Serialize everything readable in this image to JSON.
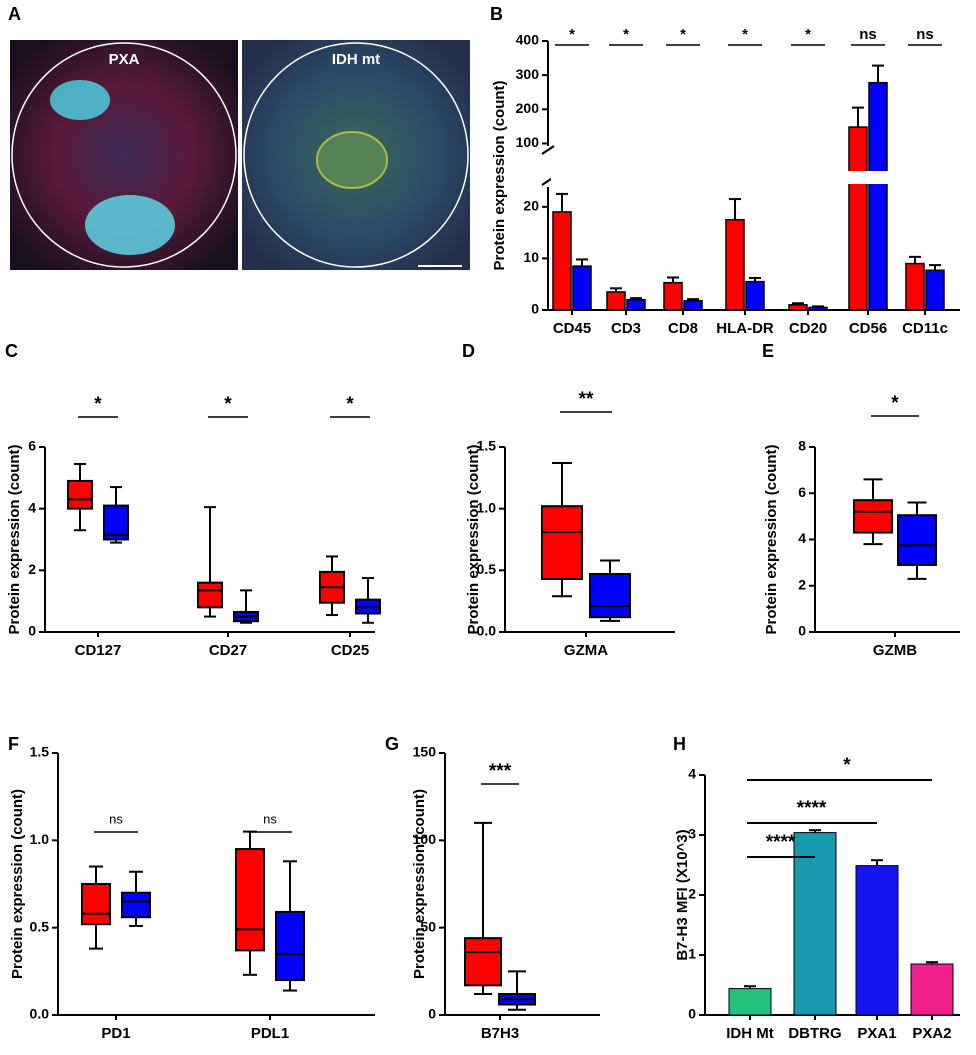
{
  "image_panel": {
    "label": "A",
    "captions": [
      "PXA",
      "IDH mt"
    ]
  },
  "chart_data": [
    {
      "type": "bar",
      "label": "B",
      "ylabel": "Protein expression (count)",
      "categories": [
        "CD45",
        "CD3",
        "CD8",
        "HLA-DR",
        "CD20",
        "CD56",
        "CD11c"
      ],
      "series": [
        {
          "color": "#ff0000",
          "values": [
            19,
            3.5,
            5.3,
            17.5,
            1,
            148,
            9
          ],
          "errors": [
            3.5,
            0.7,
            1,
            4,
            0.3,
            57,
            1.3
          ]
        },
        {
          "color": "#0000ff",
          "values": [
            8.5,
            2,
            1.8,
            5.5,
            0.5,
            278,
            7.7
          ],
          "errors": [
            1.3,
            0.3,
            0.3,
            0.7,
            0.2,
            50,
            1
          ]
        }
      ],
      "annotations": [
        "*",
        "*",
        "*",
        "*",
        "*",
        "ns",
        "ns"
      ],
      "y_segments": [
        {
          "ylim": [
            0,
            25
          ],
          "yticks": [
            0,
            10,
            20
          ]
        },
        {
          "ylim": [
            75,
            400
          ],
          "yticks": [
            100,
            200,
            300,
            400
          ]
        }
      ]
    },
    {
      "type": "box",
      "label": "C",
      "ylabel": "Protein expression (count)",
      "categories": [
        "CD127",
        "CD27",
        "CD25"
      ],
      "series": [
        {
          "color": "#ff0000",
          "values": [
            [
              3.3,
              4.0,
              4.3,
              4.9,
              5.45
            ],
            [
              0.5,
              0.8,
              1.35,
              1.6,
              4.05
            ],
            [
              0.55,
              0.95,
              1.45,
              1.95,
              2.45
            ]
          ]
        },
        {
          "color": "#0000ff",
          "values": [
            [
              2.9,
              3.0,
              3.15,
              4.1,
              4.7
            ],
            [
              0.3,
              0.35,
              0.5,
              0.65,
              1.35
            ],
            [
              0.3,
              0.6,
              0.8,
              1.05,
              1.75
            ]
          ]
        }
      ],
      "annotations": [
        "*",
        "*",
        "*"
      ],
      "ylim": [
        0,
        6
      ],
      "yticks": [
        0,
        2,
        4,
        6
      ]
    },
    {
      "type": "box",
      "label": "D",
      "ylabel": "Protein expression (count)",
      "categories": [
        "GZMA"
      ],
      "series": [
        {
          "color": "#ff0000",
          "values": [
            [
              0.29,
              0.43,
              0.81,
              1.02,
              1.37
            ]
          ]
        },
        {
          "color": "#0000ff",
          "values": [
            [
              0.09,
              0.12,
              0.21,
              0.47,
              0.58
            ]
          ]
        }
      ],
      "annotations": [
        "**"
      ],
      "ylim": [
        0,
        1.5
      ],
      "yticks": [
        {
          "value": 0,
          "label": "0.0"
        },
        0.5,
        {
          "value": 1,
          "label": "1.0"
        },
        1.5
      ]
    },
    {
      "type": "box",
      "label": "E",
      "ylabel": "Protein expression (count)",
      "categories": [
        "GZMB"
      ],
      "series": [
        {
          "color": "#ff0000",
          "values": [
            [
              3.8,
              4.3,
              5.2,
              5.7,
              6.6
            ]
          ]
        },
        {
          "color": "#0000ff",
          "values": [
            [
              2.3,
              2.9,
              3.75,
              5.05,
              5.6
            ]
          ]
        }
      ],
      "annotations": [
        "*"
      ],
      "ylim": [
        0,
        8
      ],
      "yticks": [
        0,
        2,
        4,
        6,
        8
      ]
    },
    {
      "type": "box",
      "label": "F",
      "ylabel": "Protein expression (count)",
      "categories": [
        "PD1",
        "PDL1"
      ],
      "series": [
        {
          "color": "#ff0000",
          "values": [
            [
              0.38,
              0.52,
              0.58,
              0.75,
              0.85
            ],
            [
              0.23,
              0.37,
              0.49,
              0.95,
              1.05
            ]
          ]
        },
        {
          "color": "#0000ff",
          "values": [
            [
              0.51,
              0.56,
              0.65,
              0.7,
              0.82
            ],
            [
              0.14,
              0.2,
              0.35,
              0.59,
              0.88
            ]
          ]
        }
      ],
      "annotations": [
        "ns",
        "ns"
      ],
      "ylim": [
        0,
        1.5
      ],
      "yticks": [
        {
          "value": 0,
          "label": "0.0"
        },
        0.5,
        {
          "value": 1,
          "label": "1.0"
        },
        1.5
      ]
    },
    {
      "type": "box",
      "label": "G",
      "ylabel": "Protein expression (count)",
      "categories": [
        "B7H3"
      ],
      "series": [
        {
          "color": "#ff0000",
          "values": [
            [
              12,
              17,
              36,
              44,
              110
            ]
          ]
        },
        {
          "color": "#0000ff",
          "values": [
            [
              3,
              6,
              9,
              12,
              25
            ]
          ]
        }
      ],
      "annotations": [
        "***"
      ],
      "ylim": [
        0,
        150
      ],
      "yticks": [
        0,
        50,
        100,
        150
      ]
    },
    {
      "type": "bar",
      "label": "H",
      "ylabel": "B7-H3 MFI (X10^3)",
      "categories": [
        "IDH Mt",
        "DBTRG",
        "PXA1",
        "PXA2"
      ],
      "colors": [
        "#22c27a",
        "#1a9ab0",
        "#1414f0",
        "#f0208a"
      ],
      "values": [
        0.44,
        3.04,
        2.49,
        0.85
      ],
      "errors": [
        0.04,
        0.04,
        0.09,
        0.03
      ],
      "annotations": [
        "****",
        "****",
        "*"
      ],
      "ylim": [
        0,
        4
      ],
      "yticks": [
        0,
        1,
        2,
        3,
        4
      ]
    }
  ]
}
